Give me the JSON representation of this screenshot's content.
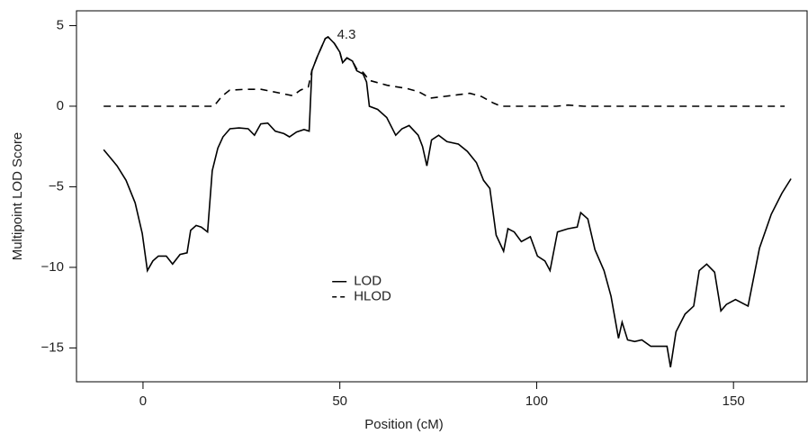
{
  "chart_data": {
    "type": "line",
    "xlabel": "Position (cM)",
    "ylabel": "Multipoint LOD Score",
    "xlim": [
      -16.9,
      168.7
    ],
    "ylim": [
      -17.1,
      5.92
    ],
    "xticks": [
      0,
      50,
      100,
      150
    ],
    "yticks": [
      {
        "value": -15,
        "label": "−15"
      },
      {
        "value": -10,
        "label": "−10"
      },
      {
        "value": -5,
        "label": "−5"
      },
      0,
      5
    ],
    "grid": false,
    "legend_position": "center",
    "annotations": [
      {
        "text": "4.3",
        "x": 47,
        "y": 4.3
      }
    ],
    "series": [
      {
        "name": "LOD",
        "color": "#000000",
        "style": "solid",
        "x": [
          -10,
          -6.6,
          -4.3,
          -2,
          -0.2,
          1.1,
          2.5,
          3.9,
          5.9,
          7.5,
          9.4,
          11.2,
          12.1,
          13.5,
          14.8,
          16.4,
          17.6,
          19,
          20.3,
          22.1,
          24.4,
          26.7,
          28.3,
          29.9,
          31.7,
          33.6,
          35.8,
          37.2,
          39,
          40.9,
          42.2,
          42.9,
          44.3,
          46.3,
          47,
          48.6,
          50,
          50.7,
          51.8,
          53.2,
          54.3,
          55.9,
          56.8,
          57.5,
          59.6,
          61.9,
          64.2,
          65.8,
          67.6,
          69.9,
          71,
          72.1,
          73.3,
          75.1,
          77.2,
          80.1,
          82.4,
          84.7,
          86.5,
          88.1,
          89.7,
          91.6,
          92.7,
          94.3,
          96.1,
          98.4,
          100.2,
          102.1,
          103.4,
          105.3,
          108,
          110.3,
          111.2,
          113,
          114.8,
          117.1,
          118.9,
          120.8,
          121.7,
          123.1,
          124.9,
          126.7,
          129,
          131.5,
          133.1,
          134,
          135.4,
          137.7,
          139.9,
          141.3,
          143.2,
          145.2,
          146.8,
          148.2,
          150.5,
          153.7,
          156.6,
          159.6,
          162.3,
          164.6
        ],
        "values": [
          -2.7,
          -3.7,
          -4.6,
          -6,
          -7.9,
          -10.2,
          -9.6,
          -9.3,
          -9.3,
          -9.8,
          -9.2,
          -9.1,
          -7.7,
          -7.4,
          -7.5,
          -7.8,
          -4,
          -2.6,
          -1.9,
          -1.4,
          -1.35,
          -1.4,
          -1.8,
          -1.1,
          -1.05,
          -1.55,
          -1.7,
          -1.9,
          -1.6,
          -1.45,
          -1.55,
          2.2,
          3.1,
          4.2,
          4.3,
          3.9,
          3.35,
          2.7,
          3,
          2.8,
          2.2,
          2,
          1.5,
          0,
          -0.2,
          -0.7,
          -1.8,
          -1.4,
          -1.2,
          -1.8,
          -2.5,
          -3.7,
          -2.1,
          -1.8,
          -2.2,
          -2.35,
          -2.8,
          -3.5,
          -4.6,
          -5.1,
          -8,
          -9,
          -7.6,
          -7.8,
          -8.4,
          -8.1,
          -9.3,
          -9.6,
          -10.2,
          -7.8,
          -7.6,
          -7.5,
          -6.6,
          -7,
          -8.9,
          -10.2,
          -11.8,
          -14.4,
          -13.4,
          -14.5,
          -14.6,
          -14.5,
          -14.9,
          -14.9,
          -14.9,
          -16.2,
          -14,
          -12.9,
          -12.4,
          -10.2,
          -9.8,
          -10.3,
          -12.7,
          -12.3,
          -12,
          -12.4,
          -8.8,
          -6.7,
          -5.4,
          -4.5
        ]
      },
      {
        "name": "HLOD",
        "color": "#000000",
        "style": "dashed",
        "x": [
          -10,
          18,
          20,
          22,
          26,
          30,
          35,
          38,
          40,
          42,
          42.9,
          44.3,
          46.3,
          47,
          48.6,
          50,
          50.7,
          51.8,
          53.2,
          54.3,
          55.9,
          57.5,
          62,
          67,
          70,
          73,
          78,
          83,
          86,
          89,
          91,
          105,
          108,
          112,
          163
        ],
        "values": [
          0,
          0,
          0.6,
          1,
          1.05,
          1.05,
          0.8,
          0.65,
          1,
          1.2,
          2.2,
          3.1,
          4.2,
          4.3,
          3.9,
          3.35,
          2.7,
          3,
          2.8,
          2.3,
          2.1,
          1.6,
          1.3,
          1.1,
          0.9,
          0.5,
          0.65,
          0.8,
          0.6,
          0.2,
          0,
          0,
          0.07,
          0,
          0
        ]
      }
    ]
  }
}
